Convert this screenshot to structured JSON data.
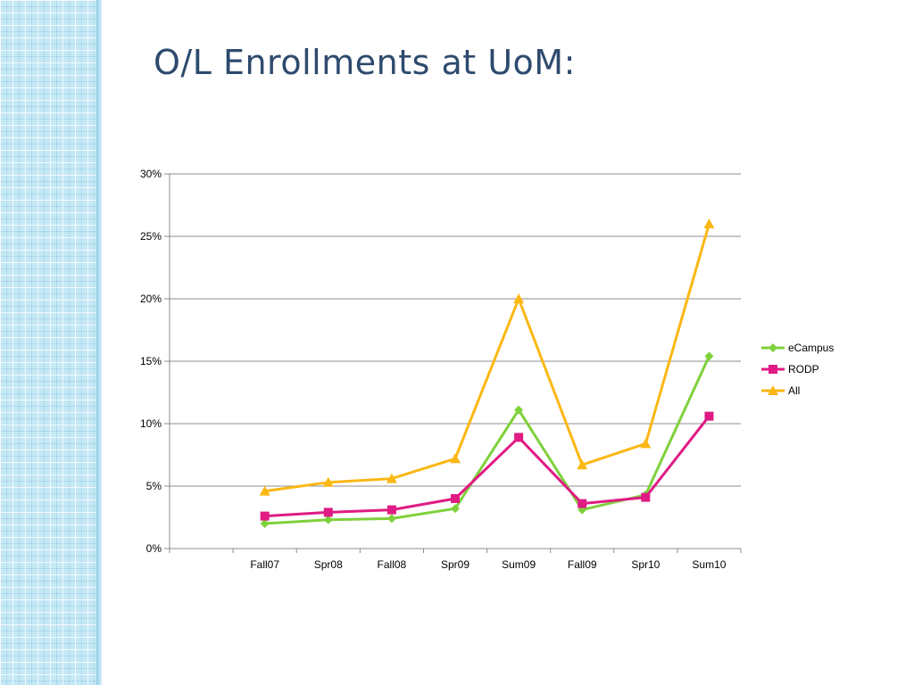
{
  "slide": {
    "title": "O/L Enrollments at UoM:"
  },
  "chart_data": {
    "type": "line",
    "title": "",
    "xlabel": "",
    "ylabel": "",
    "categories": [
      "Fall07",
      "Spr08",
      "Fall08",
      "Spr09",
      "Sum09",
      "Fall09",
      "Spr10",
      "Sum10"
    ],
    "ylim": [
      0,
      0.3
    ],
    "yticks": [
      0,
      0.05,
      0.1,
      0.15,
      0.2,
      0.25,
      0.3
    ],
    "ytick_labels": [
      "0%",
      "5%",
      "10%",
      "15%",
      "20%",
      "25%",
      "30%"
    ],
    "grid": true,
    "legend_position": "right",
    "series": [
      {
        "name": "eCampus",
        "color": "#7fd13b",
        "marker": "diamond",
        "values": [
          0.02,
          0.023,
          0.024,
          0.032,
          0.111,
          0.031,
          0.043,
          0.154
        ]
      },
      {
        "name": "RODP",
        "color": "#e01b84",
        "marker": "square",
        "values": [
          0.026,
          0.029,
          0.031,
          0.04,
          0.089,
          0.036,
          0.041,
          0.106
        ]
      },
      {
        "name": "All",
        "color": "#fbb714",
        "marker": "triangle",
        "values": [
          0.046,
          0.053,
          0.056,
          0.072,
          0.2,
          0.067,
          0.084,
          0.26
        ]
      }
    ]
  }
}
